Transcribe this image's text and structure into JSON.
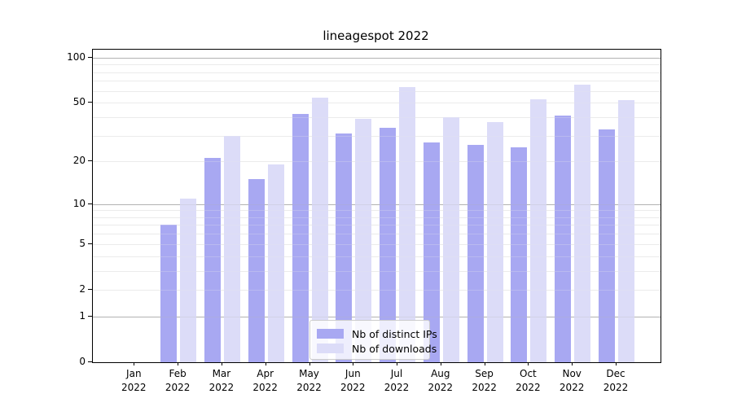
{
  "title": "lineagespot 2022",
  "chart_data": {
    "type": "bar",
    "title": "lineagespot 2022",
    "x_tick_months": [
      "Jan",
      "Feb",
      "Mar",
      "Apr",
      "May",
      "Jun",
      "Jul",
      "Aug",
      "Sep",
      "Oct",
      "Nov",
      "Dec"
    ],
    "x_tick_year": "2022",
    "categories": [
      "Jan 2022",
      "Feb 2022",
      "Mar 2022",
      "Apr 2022",
      "May 2022",
      "Jun 2022",
      "Jul 2022",
      "Aug 2022",
      "Sep 2022",
      "Oct 2022",
      "Nov 2022",
      "Dec 2022"
    ],
    "series": [
      {
        "name": "Nb of distinct IPs",
        "color": "#a8a8f2",
        "values": [
          0,
          7,
          21,
          15,
          42,
          31,
          34,
          27,
          26,
          25,
          41,
          33
        ]
      },
      {
        "name": "Nb of downloads",
        "color": "#dcdcf8",
        "values": [
          0,
          11,
          30,
          19,
          54,
          39,
          64,
          40,
          37,
          53,
          66,
          52
        ]
      }
    ],
    "yscale": "log1p",
    "ytick_labels": [
      "0",
      "1",
      "2",
      "5",
      "10",
      "20",
      "50",
      "100"
    ],
    "ytick_values": [
      0,
      1,
      2,
      5,
      10,
      20,
      50,
      100
    ],
    "ylim": [
      0,
      113
    ],
    "grid": "horizontal, minor + major",
    "legend_position": "lower center"
  },
  "colors": {
    "bar_dark": "#a8a8f2",
    "bar_light": "#dcdcf8",
    "grid_minor": "#ebebeb",
    "grid_major": "#b2b2b2",
    "axis": "#000000",
    "background": "#ffffff",
    "legend_border": "#cccccc"
  }
}
